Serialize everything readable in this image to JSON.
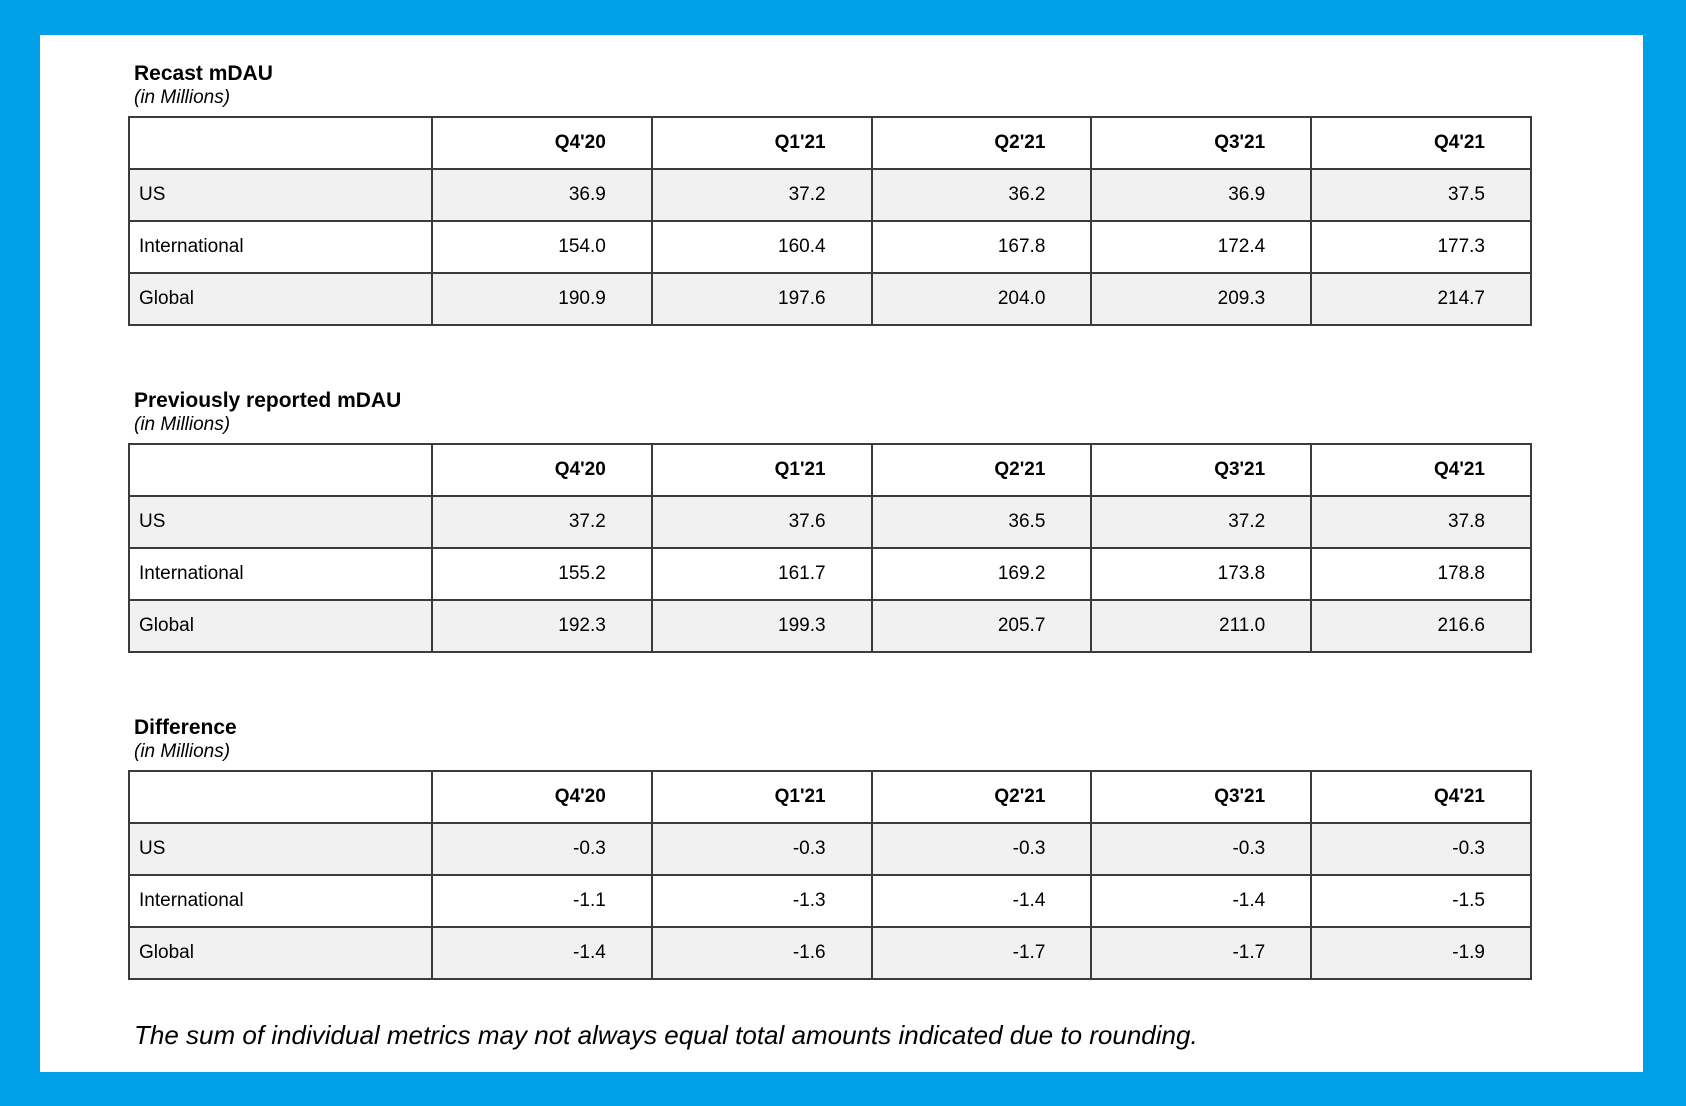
{
  "frame": {
    "border_color": "#00A0E9",
    "sheet_background": "#ffffff",
    "stripe_color": "#f1f1f1",
    "grid_color": "#3b3b3b"
  },
  "columns": [
    "Q4'20",
    "Q1'21",
    "Q2'21",
    "Q3'21",
    "Q4'21"
  ],
  "tables": [
    {
      "title": "Recast mDAU",
      "subtitle": "(in Millions)",
      "rows": [
        {
          "label": "US",
          "values": [
            "36.9",
            "37.2",
            "36.2",
            "36.9",
            "37.5"
          ]
        },
        {
          "label": "International",
          "values": [
            "154.0",
            "160.4",
            "167.8",
            "172.4",
            "177.3"
          ]
        },
        {
          "label": "Global",
          "values": [
            "190.9",
            "197.6",
            "204.0",
            "209.3",
            "214.7"
          ]
        }
      ]
    },
    {
      "title": "Previously reported mDAU",
      "subtitle": "(in Millions)",
      "rows": [
        {
          "label": "US",
          "values": [
            "37.2",
            "37.6",
            "36.5",
            "37.2",
            "37.8"
          ]
        },
        {
          "label": "International",
          "values": [
            "155.2",
            "161.7",
            "169.2",
            "173.8",
            "178.8"
          ]
        },
        {
          "label": "Global",
          "values": [
            "192.3",
            "199.3",
            "205.7",
            "211.0",
            "216.6"
          ]
        }
      ]
    },
    {
      "title": "Difference",
      "subtitle": "(in Millions)",
      "rows": [
        {
          "label": "US",
          "values": [
            "-0.3",
            "-0.3",
            "-0.3",
            "-0.3",
            "-0.3"
          ]
        },
        {
          "label": "International",
          "values": [
            "-1.1",
            "-1.3",
            "-1.4",
            "-1.4",
            "-1.5"
          ]
        },
        {
          "label": "Global",
          "values": [
            "-1.4",
            "-1.6",
            "-1.7",
            "-1.7",
            "-1.9"
          ]
        }
      ]
    }
  ],
  "footnote": "The sum of individual metrics may not always equal total amounts indicated due to rounding."
}
